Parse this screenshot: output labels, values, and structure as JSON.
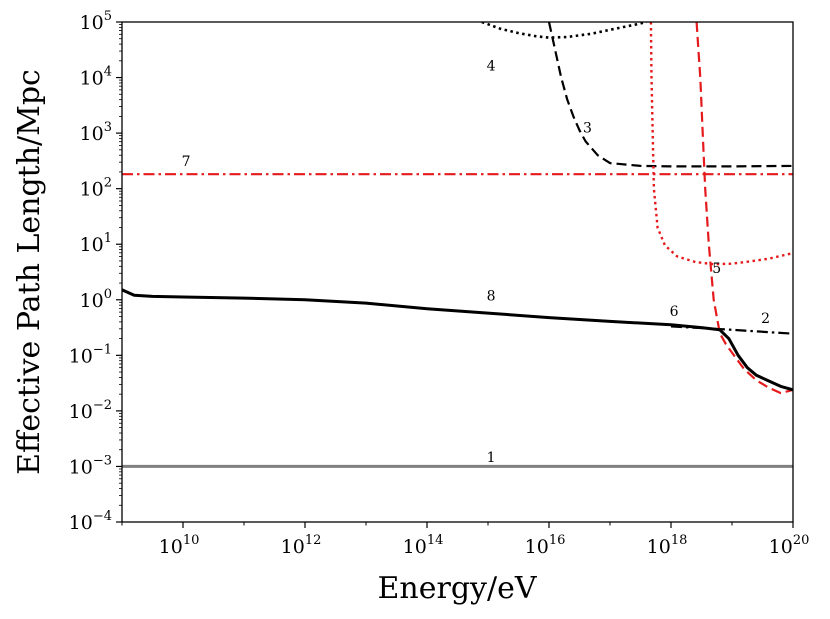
{
  "chart_data": {
    "type": "line",
    "title": "",
    "xlabel": "Energy/eV",
    "ylabel": "Effective Path Length/Mpc",
    "x_scale": "log",
    "y_scale": "log",
    "xlim_exp": [
      9,
      20
    ],
    "ylim_exp": [
      -4,
      5
    ],
    "x_ticks": [
      {
        "base": "10",
        "exp": "10",
        "value_exp": 10
      },
      {
        "base": "10",
        "exp": "12",
        "value_exp": 12
      },
      {
        "base": "10",
        "exp": "14",
        "value_exp": 14
      },
      {
        "base": "10",
        "exp": "16",
        "value_exp": 16
      },
      {
        "base": "10",
        "exp": "18",
        "value_exp": 18
      },
      {
        "base": "10",
        "exp": "20",
        "value_exp": 20
      }
    ],
    "y_ticks": [
      {
        "base": "10",
        "exp": "−4",
        "value_exp": -4
      },
      {
        "base": "10",
        "exp": "−3",
        "value_exp": -3
      },
      {
        "base": "10",
        "exp": "−2",
        "value_exp": -2
      },
      {
        "base": "10",
        "exp": "−1",
        "value_exp": -1
      },
      {
        "base": "10",
        "exp": "0",
        "value_exp": 0
      },
      {
        "base": "10",
        "exp": "1",
        "value_exp": 1
      },
      {
        "base": "10",
        "exp": "2",
        "value_exp": 2
      },
      {
        "base": "10",
        "exp": "3",
        "value_exp": 3
      },
      {
        "base": "10",
        "exp": "4",
        "value_exp": 4
      },
      {
        "base": "10",
        "exp": "5",
        "value_exp": 5
      }
    ],
    "series": [
      {
        "name": "1",
        "color": "#808080",
        "style": "solid",
        "width": 3,
        "log10_points": [
          [
            9,
            -3
          ],
          [
            20,
            -3
          ]
        ]
      },
      {
        "name": "2",
        "color": "#000000",
        "style": "dashdot",
        "width": 2.2,
        "log10_points": [
          [
            18,
            -0.48
          ],
          [
            19,
            -0.54
          ],
          [
            20,
            -0.61
          ]
        ]
      },
      {
        "name": "3",
        "color": "#000000",
        "style": "dashed",
        "width": 2.2,
        "log10_points": [
          [
            16.0,
            5.0
          ],
          [
            16.1,
            4.5
          ],
          [
            16.2,
            4.0
          ],
          [
            16.3,
            3.6
          ],
          [
            16.4,
            3.3
          ],
          [
            16.5,
            3.05
          ],
          [
            16.6,
            2.85
          ],
          [
            16.8,
            2.6
          ],
          [
            17.0,
            2.46
          ],
          [
            17.5,
            2.41
          ],
          [
            18.0,
            2.4
          ],
          [
            19.0,
            2.4
          ],
          [
            20.0,
            2.41
          ]
        ]
      },
      {
        "name": "4",
        "color": "#000000",
        "style": "dotted",
        "width": 2.6,
        "log10_points": [
          [
            14.9,
            5.0
          ],
          [
            15.2,
            4.88
          ],
          [
            15.5,
            4.8
          ],
          [
            15.8,
            4.74
          ],
          [
            16.0,
            4.72
          ],
          [
            16.3,
            4.73
          ],
          [
            16.7,
            4.79
          ],
          [
            17.0,
            4.86
          ],
          [
            17.4,
            4.95
          ],
          [
            17.6,
            5.0
          ]
        ]
      },
      {
        "name": "5",
        "color": "#e41a1c",
        "style": "dashed",
        "width": 2.2,
        "log10_points": [
          [
            18.42,
            5.0
          ],
          [
            18.45,
            4.5
          ],
          [
            18.48,
            4.0
          ],
          [
            18.52,
            3.0
          ],
          [
            18.56,
            2.0
          ],
          [
            18.62,
            1.0
          ],
          [
            18.7,
            0.0
          ],
          [
            18.8,
            -0.6
          ],
          [
            18.9,
            -0.8
          ],
          [
            19.0,
            -0.95
          ],
          [
            19.2,
            -1.25
          ],
          [
            19.4,
            -1.45
          ],
          [
            19.6,
            -1.58
          ],
          [
            19.8,
            -1.68
          ],
          [
            20.0,
            -1.62
          ]
        ]
      },
      {
        "name": "6",
        "color": "#e41a1c",
        "style": "dotted",
        "width": 2.4,
        "log10_points": [
          [
            17.67,
            5.0
          ],
          [
            17.68,
            4.0
          ],
          [
            17.7,
            3.0
          ],
          [
            17.72,
            2.0
          ],
          [
            17.78,
            1.3
          ],
          [
            17.9,
            0.98
          ],
          [
            18.1,
            0.78
          ],
          [
            18.4,
            0.68
          ],
          [
            18.7,
            0.64
          ],
          [
            19.0,
            0.65
          ],
          [
            19.3,
            0.69
          ],
          [
            19.6,
            0.74
          ],
          [
            20.0,
            0.84
          ]
        ]
      },
      {
        "name": "7",
        "color": "#e41a1c",
        "style": "dashdot",
        "width": 2.2,
        "log10_points": [
          [
            9,
            2.26
          ],
          [
            20,
            2.26
          ]
        ]
      },
      {
        "name": "8",
        "color": "#000000",
        "style": "solid",
        "width": 3,
        "log10_points": [
          [
            9.0,
            0.18
          ],
          [
            9.2,
            0.08
          ],
          [
            9.5,
            0.06
          ],
          [
            10.0,
            0.05
          ],
          [
            11.0,
            0.03
          ],
          [
            12.0,
            0.0
          ],
          [
            13.0,
            -0.06
          ],
          [
            14.0,
            -0.16
          ],
          [
            15.0,
            -0.24
          ],
          [
            16.0,
            -0.32
          ],
          [
            17.0,
            -0.39
          ],
          [
            18.0,
            -0.45
          ],
          [
            18.5,
            -0.5
          ],
          [
            18.8,
            -0.54
          ],
          [
            18.95,
            -0.7
          ],
          [
            19.1,
            -1.0
          ],
          [
            19.25,
            -1.22
          ],
          [
            19.4,
            -1.36
          ],
          [
            19.6,
            -1.46
          ],
          [
            19.8,
            -1.56
          ],
          [
            20.0,
            -1.62
          ]
        ]
      }
    ],
    "annotations": [
      {
        "text": "1",
        "x_exp": 15.05,
        "y_exp": -2.85
      },
      {
        "text": "2",
        "x_exp": 19.55,
        "y_exp": -0.35
      },
      {
        "text": "3",
        "x_exp": 16.63,
        "y_exp": 3.08
      },
      {
        "text": "4",
        "x_exp": 15.05,
        "y_exp": 4.2
      },
      {
        "text": "5",
        "x_exp": 18.75,
        "y_exp": 0.55
      },
      {
        "text": "6",
        "x_exp": 18.05,
        "y_exp": -0.22
      },
      {
        "text": "7",
        "x_exp": 10.05,
        "y_exp": 2.48
      },
      {
        "text": "8",
        "x_exp": 15.05,
        "y_exp": 0.06
      }
    ]
  }
}
